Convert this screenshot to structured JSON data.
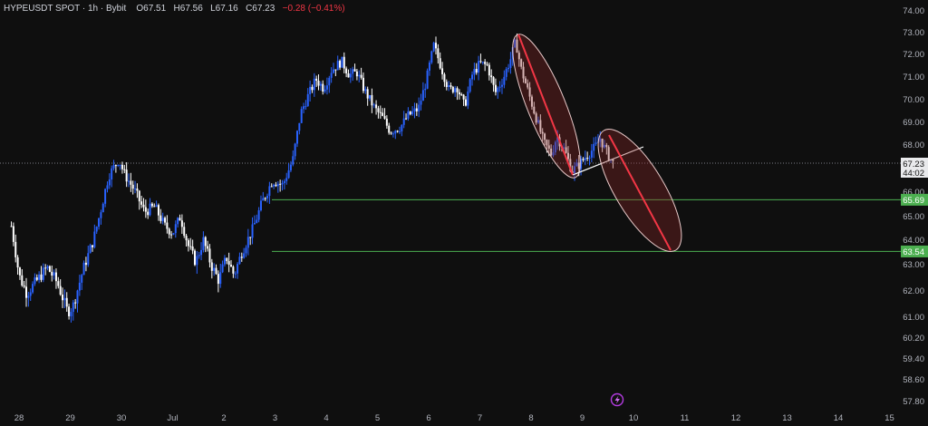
{
  "header": {
    "symbol": "HYPEUSDT SPOT",
    "interval": "1h",
    "exchange": "Bybit",
    "open": "O67.51",
    "high": "H67.56",
    "low": "L67.16",
    "close": "C67.23",
    "change": "−0.28 (−0.41%)"
  },
  "price_badge": {
    "price": "67.23",
    "countdown": "44:02"
  },
  "levels": [
    {
      "label": "65.69",
      "value": 65.69,
      "color": "#4caf50"
    },
    {
      "label": "63.54",
      "value": 63.54,
      "color": "#4caf50"
    }
  ],
  "chart_data": {
    "type": "candlestick",
    "interval": "1h",
    "y_axis": {
      "range": [
        57.6,
        74.3
      ],
      "ticks": [
        "74.00",
        "73.00",
        "72.00",
        "71.00",
        "70.00",
        "69.00",
        "68.00",
        "66.00",
        "65.00",
        "64.00",
        "63.00",
        "62.00",
        "61.00",
        "60.20",
        "59.40",
        "58.60",
        "57.80"
      ]
    },
    "x_axis": {
      "ticks": [
        "28",
        "29",
        "30",
        "Jul",
        "2",
        "3",
        "4",
        "5",
        "6",
        "7",
        "8",
        "9",
        "10",
        "11",
        "12",
        "13",
        "14",
        "15"
      ]
    },
    "price_path": [
      [
        27.85,
        64.6
      ],
      [
        28.0,
        62.6
      ],
      [
        28.15,
        61.9
      ],
      [
        28.35,
        62.4
      ],
      [
        28.55,
        62.9
      ],
      [
        28.75,
        62.3
      ],
      [
        28.95,
        61.2
      ],
      [
        29.05,
        61.4
      ],
      [
        29.25,
        62.8
      ],
      [
        29.45,
        64.0
      ],
      [
        29.6,
        65.3
      ],
      [
        29.75,
        66.7
      ],
      [
        29.95,
        67.4
      ],
      [
        30.05,
        66.8
      ],
      [
        30.25,
        66.1
      ],
      [
        30.45,
        65.2
      ],
      [
        30.65,
        65.4
      ],
      [
        30.85,
        64.6
      ],
      [
        31.0,
        64.3
      ],
      [
        31.15,
        65.0
      ],
      [
        31.3,
        63.8
      ],
      [
        31.45,
        63.1
      ],
      [
        31.6,
        64.0
      ],
      [
        31.75,
        63.0
      ],
      [
        31.9,
        62.4
      ],
      [
        32.05,
        63.3
      ],
      [
        32.2,
        62.6
      ],
      [
        32.35,
        63.5
      ],
      [
        32.55,
        64.4
      ],
      [
        32.75,
        65.6
      ],
      [
        32.95,
        66.5
      ],
      [
        33.15,
        66.3
      ],
      [
        33.35,
        67.4
      ],
      [
        33.5,
        69.4
      ],
      [
        33.65,
        70.2
      ],
      [
        33.8,
        70.9
      ],
      [
        33.95,
        70.5
      ],
      [
        34.1,
        71.3
      ],
      [
        34.3,
        71.7
      ],
      [
        34.45,
        71.1
      ],
      [
        34.6,
        71.2
      ],
      [
        34.75,
        70.4
      ],
      [
        34.95,
        69.6
      ],
      [
        35.1,
        69.2
      ],
      [
        35.25,
        68.6
      ],
      [
        35.45,
        68.8
      ],
      [
        35.6,
        69.3
      ],
      [
        35.8,
        69.6
      ],
      [
        35.95,
        70.8
      ],
      [
        36.1,
        72.4
      ],
      [
        36.25,
        71.4
      ],
      [
        36.4,
        70.4
      ],
      [
        36.55,
        70.6
      ],
      [
        36.7,
        69.7
      ],
      [
        36.85,
        71.1
      ],
      [
        37.0,
        71.6
      ],
      [
        37.15,
        71.5
      ],
      [
        37.3,
        70.3
      ],
      [
        37.45,
        70.9
      ],
      [
        37.6,
        71.8
      ],
      [
        37.7,
        72.6
      ],
      [
        37.8,
        71.4
      ],
      [
        37.95,
        70.3
      ],
      [
        38.1,
        69.2
      ],
      [
        38.25,
        68.1
      ],
      [
        38.4,
        67.6
      ],
      [
        38.5,
        68.4
      ],
      [
        38.65,
        67.8
      ],
      [
        38.8,
        66.9
      ],
      [
        38.95,
        67.2
      ],
      [
        39.1,
        67.6
      ],
      [
        39.25,
        67.9
      ],
      [
        39.35,
        68.3
      ],
      [
        39.45,
        67.8
      ],
      [
        39.6,
        67.23
      ]
    ]
  }
}
